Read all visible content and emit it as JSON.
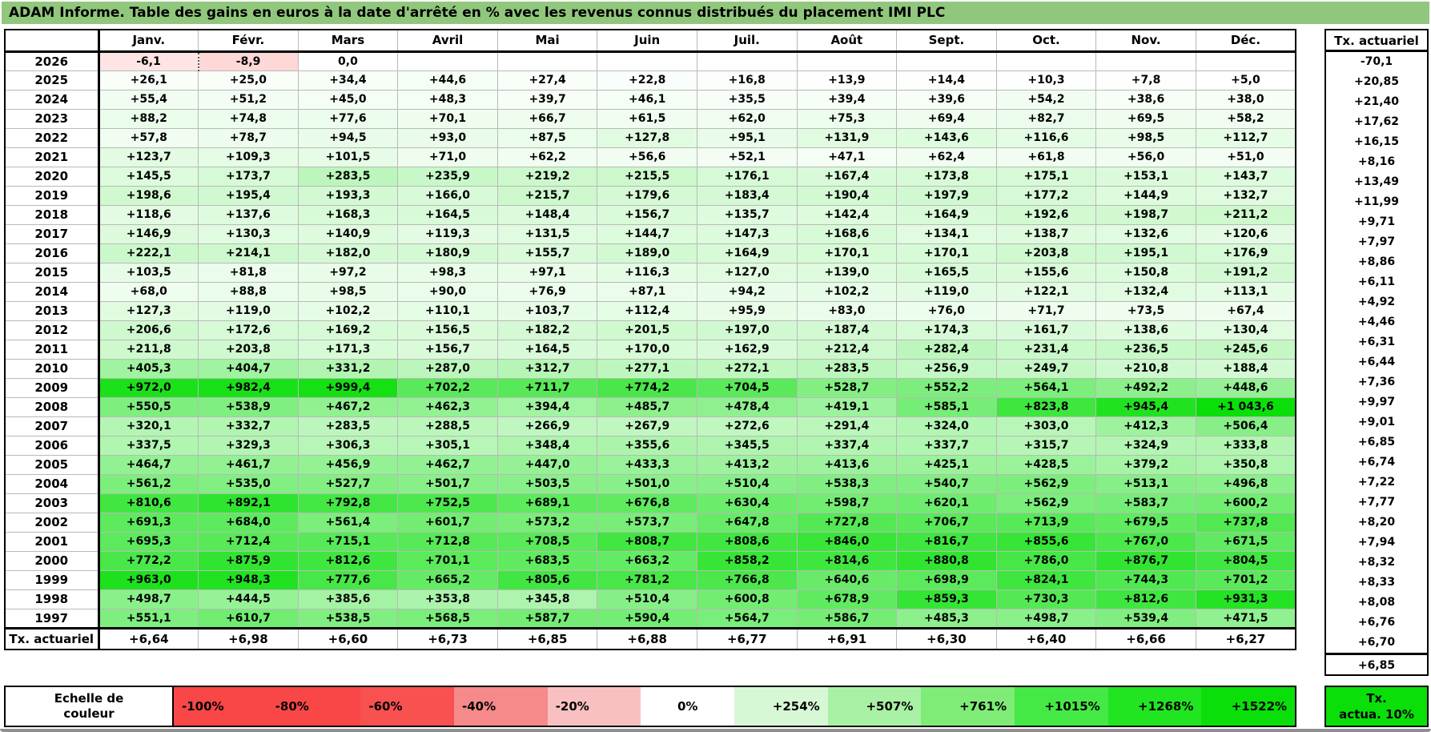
{
  "title": "ADAM Informe. Table des gains en euros à la date d'arrêté en % avec les revenus connus distribués du placement IMI PLC",
  "colors": {
    "title_bg": "#90C77D",
    "positive_full": "#0ADF0A",
    "negative_full": "#F94747",
    "grid_line": "#b9b9b9"
  },
  "table": {
    "months": [
      "Janv.",
      "Févr.",
      "Mars",
      "Avril",
      "Mai",
      "Juin",
      "Juil.",
      "Août",
      "Sept.",
      "Oct.",
      "Nov.",
      "Déc."
    ],
    "tx_header": "Tx. actuariel",
    "footer_label": "Tx. actuariel",
    "rows": [
      {
        "year": "2026",
        "values": [
          "-6,1",
          "-8,9",
          "0,0",
          "",
          "",
          "",
          "",
          "",
          "",
          "",
          "",
          ""
        ],
        "tx": "-70,1"
      },
      {
        "year": "2025",
        "values": [
          "+26,1",
          "+25,0",
          "+34,4",
          "+44,6",
          "+27,4",
          "+22,8",
          "+16,8",
          "+13,9",
          "+14,4",
          "+10,3",
          "+7,8",
          "+5,0"
        ],
        "tx": "+20,85"
      },
      {
        "year": "2024",
        "values": [
          "+55,4",
          "+51,2",
          "+45,0",
          "+48,3",
          "+39,7",
          "+46,1",
          "+35,5",
          "+39,4",
          "+39,6",
          "+54,2",
          "+38,6",
          "+38,0"
        ],
        "tx": "+21,40"
      },
      {
        "year": "2023",
        "values": [
          "+88,2",
          "+74,8",
          "+77,6",
          "+70,1",
          "+66,7",
          "+61,5",
          "+62,0",
          "+75,3",
          "+69,4",
          "+82,7",
          "+69,5",
          "+58,2"
        ],
        "tx": "+17,62"
      },
      {
        "year": "2022",
        "values": [
          "+57,8",
          "+78,7",
          "+94,5",
          "+93,0",
          "+87,5",
          "+127,8",
          "+95,1",
          "+131,9",
          "+143,6",
          "+116,6",
          "+98,5",
          "+112,7"
        ],
        "tx": "+16,15"
      },
      {
        "year": "2021",
        "values": [
          "+123,7",
          "+109,3",
          "+101,5",
          "+71,0",
          "+62,2",
          "+56,6",
          "+52,1",
          "+47,1",
          "+62,4",
          "+61,8",
          "+56,0",
          "+51,0"
        ],
        "tx": "+8,16"
      },
      {
        "year": "2020",
        "values": [
          "+145,5",
          "+173,7",
          "+283,5",
          "+235,9",
          "+219,2",
          "+215,5",
          "+176,1",
          "+167,4",
          "+173,8",
          "+175,1",
          "+153,1",
          "+143,7"
        ],
        "tx": "+13,49"
      },
      {
        "year": "2019",
        "values": [
          "+198,6",
          "+195,4",
          "+193,3",
          "+166,0",
          "+215,7",
          "+179,6",
          "+183,4",
          "+190,4",
          "+197,9",
          "+177,2",
          "+144,9",
          "+132,7"
        ],
        "tx": "+11,99"
      },
      {
        "year": "2018",
        "values": [
          "+118,6",
          "+137,6",
          "+168,3",
          "+164,5",
          "+148,4",
          "+156,7",
          "+135,7",
          "+142,4",
          "+164,9",
          "+192,6",
          "+198,7",
          "+211,2"
        ],
        "tx": "+9,71"
      },
      {
        "year": "2017",
        "values": [
          "+146,9",
          "+130,3",
          "+140,9",
          "+119,3",
          "+131,5",
          "+144,7",
          "+147,3",
          "+168,6",
          "+134,1",
          "+138,7",
          "+132,6",
          "+120,6"
        ],
        "tx": "+7,97"
      },
      {
        "year": "2016",
        "values": [
          "+222,1",
          "+214,1",
          "+182,0",
          "+180,9",
          "+155,7",
          "+189,0",
          "+164,9",
          "+170,1",
          "+170,1",
          "+203,8",
          "+195,1",
          "+176,9"
        ],
        "tx": "+8,86"
      },
      {
        "year": "2015",
        "values": [
          "+103,5",
          "+81,8",
          "+97,2",
          "+98,3",
          "+97,1",
          "+116,3",
          "+127,0",
          "+139,0",
          "+165,5",
          "+155,6",
          "+150,8",
          "+191,2"
        ],
        "tx": "+6,11"
      },
      {
        "year": "2014",
        "values": [
          "+68,0",
          "+88,8",
          "+98,5",
          "+90,0",
          "+76,9",
          "+87,1",
          "+94,2",
          "+102,2",
          "+119,0",
          "+122,1",
          "+132,4",
          "+113,1"
        ],
        "tx": "+4,92"
      },
      {
        "year": "2013",
        "values": [
          "+127,3",
          "+119,0",
          "+102,2",
          "+110,1",
          "+103,7",
          "+112,4",
          "+95,9",
          "+83,0",
          "+76,0",
          "+71,7",
          "+73,5",
          "+67,4"
        ],
        "tx": "+4,46"
      },
      {
        "year": "2012",
        "values": [
          "+206,6",
          "+172,6",
          "+169,2",
          "+156,5",
          "+182,2",
          "+201,5",
          "+197,0",
          "+187,4",
          "+174,3",
          "+161,7",
          "+138,6",
          "+130,4"
        ],
        "tx": "+6,31"
      },
      {
        "year": "2011",
        "values": [
          "+211,8",
          "+203,8",
          "+171,3",
          "+156,7",
          "+164,5",
          "+170,0",
          "+162,9",
          "+212,4",
          "+282,4",
          "+231,4",
          "+236,5",
          "+245,6"
        ],
        "tx": "+6,44"
      },
      {
        "year": "2010",
        "values": [
          "+405,3",
          "+404,7",
          "+331,2",
          "+287,0",
          "+312,7",
          "+277,1",
          "+272,1",
          "+283,5",
          "+256,9",
          "+249,7",
          "+210,8",
          "+188,4"
        ],
        "tx": "+7,36"
      },
      {
        "year": "2009",
        "values": [
          "+972,0",
          "+982,4",
          "+999,4",
          "+702,2",
          "+711,7",
          "+774,2",
          "+704,5",
          "+528,7",
          "+552,2",
          "+564,1",
          "+492,2",
          "+448,6"
        ],
        "tx": "+9,97"
      },
      {
        "year": "2008",
        "values": [
          "+550,5",
          "+538,9",
          "+467,2",
          "+462,3",
          "+394,4",
          "+485,7",
          "+478,4",
          "+419,1",
          "+585,1",
          "+823,8",
          "+945,4",
          "+1 043,6"
        ],
        "tx": "+9,01"
      },
      {
        "year": "2007",
        "values": [
          "+320,1",
          "+332,7",
          "+283,5",
          "+288,5",
          "+266,9",
          "+267,9",
          "+272,6",
          "+291,4",
          "+324,0",
          "+303,0",
          "+412,3",
          "+506,4"
        ],
        "tx": "+6,85"
      },
      {
        "year": "2006",
        "values": [
          "+337,5",
          "+329,3",
          "+306,3",
          "+305,1",
          "+348,4",
          "+355,6",
          "+345,5",
          "+337,4",
          "+337,7",
          "+315,7",
          "+324,9",
          "+333,8"
        ],
        "tx": "+6,74"
      },
      {
        "year": "2005",
        "values": [
          "+464,7",
          "+461,7",
          "+456,9",
          "+462,7",
          "+447,0",
          "+433,3",
          "+413,2",
          "+413,6",
          "+425,1",
          "+428,5",
          "+379,2",
          "+350,8"
        ],
        "tx": "+7,22"
      },
      {
        "year": "2004",
        "values": [
          "+561,2",
          "+535,0",
          "+527,7",
          "+501,7",
          "+503,5",
          "+501,0",
          "+510,4",
          "+538,3",
          "+540,7",
          "+562,9",
          "+513,1",
          "+496,8"
        ],
        "tx": "+7,77"
      },
      {
        "year": "2003",
        "values": [
          "+810,6",
          "+892,1",
          "+792,8",
          "+752,5",
          "+689,1",
          "+676,8",
          "+630,4",
          "+598,7",
          "+620,1",
          "+562,9",
          "+583,7",
          "+600,2"
        ],
        "tx": "+8,20"
      },
      {
        "year": "2002",
        "values": [
          "+691,3",
          "+684,0",
          "+561,4",
          "+601,7",
          "+573,2",
          "+573,7",
          "+647,8",
          "+727,8",
          "+706,7",
          "+713,9",
          "+679,5",
          "+737,8"
        ],
        "tx": "+7,94"
      },
      {
        "year": "2001",
        "values": [
          "+695,3",
          "+712,4",
          "+715,1",
          "+712,8",
          "+708,5",
          "+808,7",
          "+808,6",
          "+846,0",
          "+816,7",
          "+855,6",
          "+767,0",
          "+671,5"
        ],
        "tx": "+8,32"
      },
      {
        "year": "2000",
        "values": [
          "+772,2",
          "+875,9",
          "+812,6",
          "+701,1",
          "+683,5",
          "+663,2",
          "+858,2",
          "+814,6",
          "+880,8",
          "+786,0",
          "+876,7",
          "+804,5"
        ],
        "tx": "+8,33"
      },
      {
        "year": "1999",
        "values": [
          "+963,0",
          "+948,3",
          "+777,6",
          "+665,2",
          "+805,6",
          "+781,2",
          "+766,8",
          "+640,6",
          "+698,9",
          "+824,1",
          "+744,3",
          "+701,2"
        ],
        "tx": "+8,08"
      },
      {
        "year": "1998",
        "values": [
          "+498,7",
          "+444,5",
          "+385,6",
          "+353,8",
          "+345,8",
          "+510,4",
          "+600,8",
          "+678,9",
          "+859,3",
          "+730,3",
          "+812,6",
          "+931,3"
        ],
        "tx": "+6,76"
      },
      {
        "year": "1997",
        "values": [
          "+551,1",
          "+610,7",
          "+538,5",
          "+568,5",
          "+587,7",
          "+590,4",
          "+564,7",
          "+586,7",
          "+485,3",
          "+498,7",
          "+539,4",
          "+471,5"
        ],
        "tx": "+6,70"
      }
    ],
    "footer_values": [
      "+6,64",
      "+6,98",
      "+6,60",
      "+6,73",
      "+6,85",
      "+6,88",
      "+6,77",
      "+6,91",
      "+6,30",
      "+6,40",
      "+6,66",
      "+6,27"
    ],
    "footer_tx": "+6,85"
  },
  "legend": {
    "label_line1": "Echelle de",
    "label_line2": "couleur",
    "cells": [
      {
        "label": "-100%",
        "color": "#F94747",
        "align": "left"
      },
      {
        "label": "-80%",
        "color": "#F94747",
        "align": "left"
      },
      {
        "label": "-60%",
        "color": "#F95050",
        "align": "left"
      },
      {
        "label": "-40%",
        "color": "#F68989",
        "align": "left"
      },
      {
        "label": "-20%",
        "color": "#F8C0C0",
        "align": "left"
      },
      {
        "label": "0%",
        "color": "#FFFFFF",
        "align": "center"
      },
      {
        "label": "+254%",
        "color": "#D7F8D4",
        "align": "right"
      },
      {
        "label": "+507%",
        "color": "#A8F0A3",
        "align": "right"
      },
      {
        "label": "+761%",
        "color": "#7EEC77",
        "align": "right"
      },
      {
        "label": "+1015%",
        "color": "#45E945",
        "align": "right"
      },
      {
        "label": "+1268%",
        "color": "#20E520",
        "align": "right"
      },
      {
        "label": "+1522%",
        "color": "#0ADF0A",
        "align": "right"
      }
    ],
    "target_line1": "Tx.",
    "target_line2": "actua. 10%"
  }
}
